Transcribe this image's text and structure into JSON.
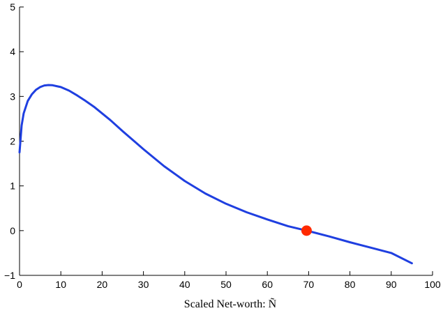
{
  "chart_data": {
    "type": "line",
    "title": "",
    "xlabel": "Scaled Net-worth: Ñ",
    "ylabel": "",
    "xlim": [
      0,
      100
    ],
    "ylim": [
      -1,
      5
    ],
    "xticks": [
      0,
      10,
      20,
      30,
      40,
      50,
      60,
      70,
      80,
      90,
      100
    ],
    "yticks": [
      -1,
      0,
      1,
      2,
      3,
      4,
      5
    ],
    "grid": false,
    "legend": "none",
    "series": [
      {
        "color": "#1f3fe0",
        "x": [
          0,
          0.5,
          1,
          2,
          3,
          4,
          5,
          6,
          7,
          8,
          9,
          10,
          12,
          14,
          16,
          18,
          20,
          22,
          25,
          28,
          30,
          35,
          40,
          45,
          50,
          55,
          60,
          65,
          69.5,
          70,
          75,
          80,
          85,
          90,
          95
        ],
        "y": [
          1.75,
          2.35,
          2.62,
          2.9,
          3.05,
          3.15,
          3.21,
          3.245,
          3.255,
          3.25,
          3.23,
          3.21,
          3.13,
          3.02,
          2.9,
          2.77,
          2.62,
          2.47,
          2.22,
          1.98,
          1.82,
          1.44,
          1.11,
          0.83,
          0.6,
          0.41,
          0.25,
          0.1,
          0.0,
          -0.01,
          -0.13,
          -0.26,
          -0.38,
          -0.5,
          -0.73
        ]
      }
    ],
    "marker": {
      "x": 69.5,
      "y": 0.0,
      "color": "#ff2a00"
    }
  }
}
